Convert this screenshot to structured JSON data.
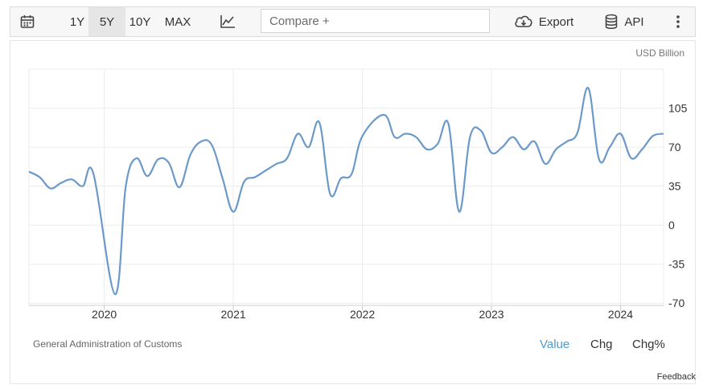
{
  "toolbar": {
    "ranges": [
      {
        "label": "1Y",
        "active": false
      },
      {
        "label": "5Y",
        "active": true
      },
      {
        "label": "10Y",
        "active": false
      },
      {
        "label": "MAX",
        "active": false
      }
    ],
    "compare_placeholder": "Compare +",
    "export_label": "Export",
    "api_label": "API"
  },
  "source": "General Administration of Customs",
  "tabs": [
    {
      "label": "Value",
      "active": true
    },
    {
      "label": "Chg",
      "active": false
    },
    {
      "label": "Chg%",
      "active": false
    }
  ],
  "feedback_label": "Feedback",
  "colors": {
    "line": "#6b99c9",
    "active_tab": "#4e9bd1",
    "grid": "#ececec"
  },
  "chart_data": {
    "type": "line",
    "unit_label": "USD Billion",
    "ylim": [
      -72,
      140
    ],
    "yticks": [
      -70,
      -35,
      0,
      35,
      70,
      105
    ],
    "xlim": [
      "2019-06",
      "2024-05"
    ],
    "xticks": [
      "2020",
      "2021",
      "2022",
      "2023",
      "2024"
    ],
    "grid": true,
    "series": [
      {
        "x": [
          "2019-06",
          "2019-07",
          "2019-08",
          "2019-09",
          "2019-10",
          "2019-11",
          "2019-12",
          "2020-02",
          "2020-03",
          "2020-04",
          "2020-05",
          "2020-06",
          "2020-07",
          "2020-08",
          "2020-09",
          "2020-10",
          "2020-11",
          "2020-12",
          "2021-01",
          "2021-02",
          "2021-03",
          "2021-04",
          "2021-05",
          "2021-06",
          "2021-07",
          "2021-08",
          "2021-09",
          "2021-10",
          "2021-11",
          "2021-12",
          "2022-01",
          "2022-03",
          "2022-04",
          "2022-05",
          "2022-06",
          "2022-07",
          "2022-08",
          "2022-09",
          "2022-10",
          "2022-11",
          "2022-12",
          "2023-01",
          "2023-02",
          "2023-03",
          "2023-04",
          "2023-05",
          "2023-06",
          "2023-07",
          "2023-08",
          "2023-09",
          "2023-10",
          "2023-11",
          "2023-12",
          "2024-01",
          "2024-02",
          "2024-03",
          "2024-04",
          "2024-05"
        ],
        "y": [
          48,
          43,
          33,
          38,
          41,
          35,
          46,
          -62,
          35,
          60,
          44,
          59,
          56,
          34,
          63,
          75,
          72,
          42,
          12,
          39,
          43,
          49,
          55,
          60,
          82,
          70,
          92,
          28,
          42,
          46,
          80,
          99,
          79,
          82,
          79,
          68,
          73,
          91,
          12,
          79,
          85,
          65,
          70,
          79,
          68,
          75,
          55,
          68,
          75,
          83,
          123,
          59,
          70,
          82,
          60,
          68,
          80,
          82
        ]
      }
    ]
  }
}
